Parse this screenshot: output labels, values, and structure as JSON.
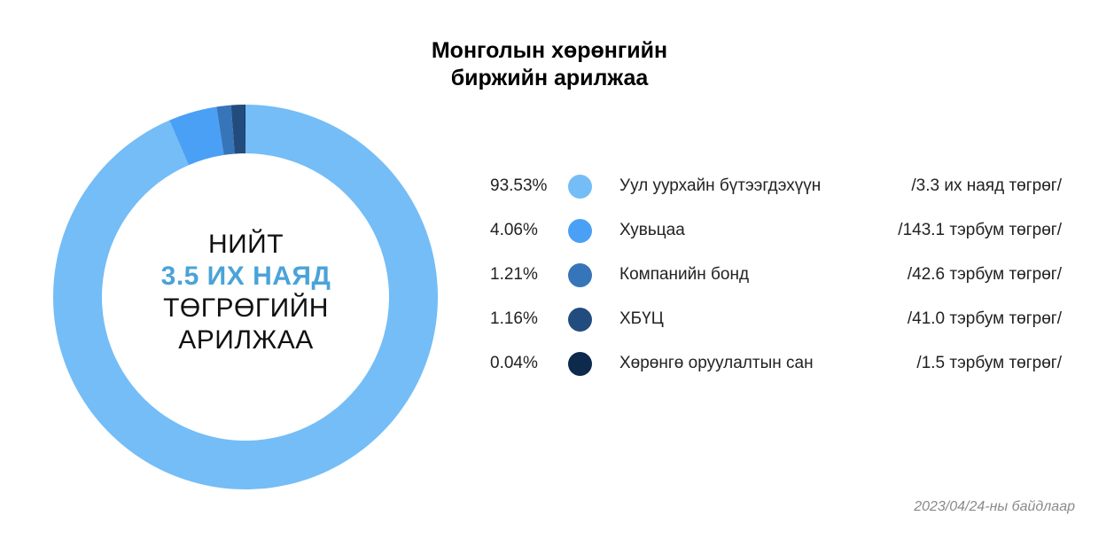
{
  "title_lines": [
    "Монголын хөрөнгийн",
    "биржийн арилжаа"
  ],
  "center": {
    "line1": "НИЙТ",
    "line2": "3.5 ИХ НАЯД",
    "line3": "ТӨГРӨГИЙН",
    "line4": "АРИЛЖАА",
    "highlight_color": "#4aa3d8"
  },
  "footnote": "2023/04/24-ны байдлаар",
  "chart_data": {
    "type": "pie",
    "donut": true,
    "categories": [
      "Уул уурхайн бүтээгдэхүүн",
      "Хувьцаа",
      "Компанийн бонд",
      "ХБҮЦ",
      "Хөрөнгө оруулалтын сан"
    ],
    "values": [
      93.53,
      4.06,
      1.21,
      1.16,
      0.04
    ],
    "value_labels": [
      "93.53%",
      "4.06%",
      "1.21%",
      "1.16%",
      "0.04%"
    ],
    "amounts": [
      "/3.3 их наяд төгрөг/",
      "/143.1 тэрбум төгрөг/",
      "/42.6 тэрбум төгрөг/",
      "/41.0 тэрбум төгрөг/",
      "/1.5 тэрбум төгрөг/"
    ],
    "colors": [
      "#74bdf7",
      "#4aa0f5",
      "#3675b9",
      "#234c7e",
      "#0d2a4c"
    ],
    "legend_position": "right"
  }
}
